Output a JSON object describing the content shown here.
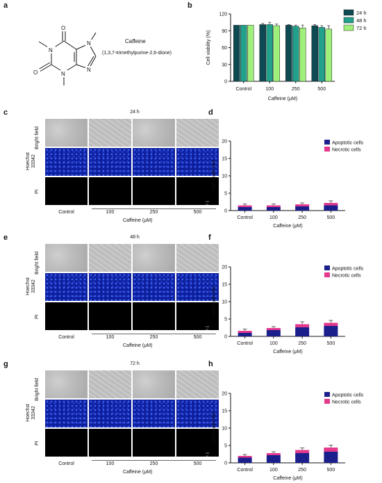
{
  "panels": {
    "a": "a",
    "b": "b",
    "c": "c",
    "d": "d",
    "e": "e",
    "f": "f",
    "g": "g",
    "h": "h"
  },
  "molecule": {
    "name": "Caffeine",
    "iupac": "(1,3,7-trimethylpurine-2,6-dione)",
    "atoms": {
      "o1": "O",
      "o2": "O",
      "n1": "N",
      "n3": "N",
      "n7": "N",
      "n9": "N"
    }
  },
  "micro": {
    "rows": [
      "Bright field",
      "Hoechst 33342",
      "PI"
    ],
    "hoechst_line1": "Hoechst",
    "hoechst_line2": "33342",
    "columns": [
      "Control",
      "100",
      "250",
      "500"
    ],
    "xlabel": "Caffeine (μM)",
    "times": [
      "24 h",
      "48 h",
      "72 h"
    ],
    "scalebar": "100 μm"
  },
  "colors": {
    "viab_24": "#0e4a52",
    "viab_48": "#21a08c",
    "viab_72": "#9ff07a",
    "apoptotic": "#1a1f8c",
    "necrotic": "#e3388c"
  },
  "chart_data": [
    {
      "type": "bar",
      "panel": "b",
      "categories": [
        "Control",
        "100",
        "250",
        "500"
      ],
      "series": [
        {
          "name": "24 h",
          "values": [
            100,
            101,
            100,
            99
          ],
          "errors": [
            0,
            2,
            1,
            2
          ]
        },
        {
          "name": "48 h",
          "values": [
            100,
            101,
            98,
            96
          ],
          "errors": [
            0,
            4,
            2,
            3
          ]
        },
        {
          "name": "72 h",
          "values": [
            100,
            99,
            95,
            93
          ],
          "errors": [
            0,
            3,
            5,
            6
          ]
        }
      ],
      "xlabel": "Caffeine (μM)",
      "ylabel": "Cell viability (%)",
      "ylim": [
        0,
        120
      ],
      "yticks": [
        "0",
        "30",
        "60",
        "90",
        "120"
      ],
      "legend_position": "top-right"
    },
    {
      "type": "bar",
      "panel": "d",
      "stacked": true,
      "categories": [
        "Control",
        "100",
        "250",
        "500"
      ],
      "series": [
        {
          "name": "Apoptotic cells",
          "values": [
            1.0,
            1.0,
            1.2,
            1.5
          ],
          "errors": [
            0,
            0,
            0,
            0
          ]
        },
        {
          "name": "Necrotic cells",
          "values": [
            0.5,
            0.5,
            0.6,
            0.7
          ],
          "errors": [
            0.4,
            0.4,
            0.4,
            0.6
          ]
        }
      ],
      "xlabel": "Caffeine  (μM)",
      "ylabel": "Cell death (%)",
      "ylim": [
        0,
        20
      ],
      "yticks": [
        "0",
        "5",
        "10",
        "15",
        "20"
      ],
      "legend_position": "top-right"
    },
    {
      "type": "bar",
      "panel": "f",
      "stacked": true,
      "categories": [
        "Control",
        "100",
        "250",
        "500"
      ],
      "series": [
        {
          "name": "Apoptotic cells",
          "values": [
            1.0,
            1.8,
            2.6,
            3.0
          ],
          "errors": [
            0,
            0,
            0,
            0
          ]
        },
        {
          "name": "Necrotic cells",
          "values": [
            0.6,
            0.6,
            0.9,
            0.9
          ],
          "errors": [
            0.5,
            0.4,
            0.7,
            0.7
          ]
        }
      ],
      "xlabel": "Caffeine (μM)",
      "ylabel": "Cell death (%)",
      "ylim": [
        0,
        20
      ],
      "yticks": [
        "0",
        "5",
        "10",
        "15",
        "20"
      ],
      "legend_position": "top-right"
    },
    {
      "type": "bar",
      "panel": "h",
      "stacked": true,
      "categories": [
        "Control",
        "100",
        "250",
        "500"
      ],
      "series": [
        {
          "name": "Apoptotic cells",
          "values": [
            1.5,
            2.2,
            2.8,
            3.2
          ],
          "errors": [
            0,
            0,
            0,
            0
          ]
        },
        {
          "name": "Necrotic cells",
          "values": [
            0.5,
            0.6,
            0.9,
            1.2
          ],
          "errors": [
            0.4,
            0.4,
            0.6,
            0.7
          ]
        }
      ],
      "xlabel": "Caffeine (μM)",
      "ylabel": "Cell death (%)",
      "ylim": [
        0,
        20
      ],
      "yticks": [
        "0",
        "5",
        "10",
        "15",
        "20"
      ],
      "legend_position": "top-right"
    }
  ]
}
